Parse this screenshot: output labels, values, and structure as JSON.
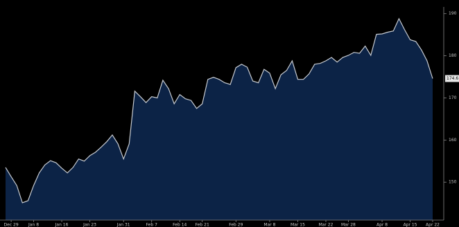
{
  "chart_data": {
    "type": "area",
    "categories": [
      null,
      "Dec 29",
      null,
      null,
      null,
      "Jan 8",
      null,
      null,
      null,
      null,
      "Jan 16",
      null,
      null,
      null,
      null,
      "Jan 23",
      null,
      null,
      null,
      null,
      null,
      "Jan 31",
      null,
      null,
      null,
      null,
      "Feb 7",
      null,
      null,
      null,
      null,
      "Feb 14",
      null,
      null,
      null,
      "Feb 21",
      null,
      null,
      null,
      null,
      null,
      "Feb 29",
      null,
      null,
      null,
      null,
      null,
      "Mar 8",
      null,
      null,
      null,
      null,
      "Mar 15",
      null,
      null,
      null,
      null,
      "Mar 22",
      null,
      null,
      null,
      "Mar 28",
      null,
      null,
      null,
      null,
      null,
      "Apr 8",
      null,
      null,
      null,
      null,
      "Apr 15",
      null,
      null,
      null,
      "Apr 22"
    ],
    "values": [
      153.5,
      151.3,
      149.2,
      145.1,
      145.6,
      149.2,
      152.2,
      154.1,
      155.1,
      154.6,
      153.3,
      152.2,
      153.5,
      155.5,
      155.0,
      156.3,
      157.1,
      158.3,
      159.6,
      161.2,
      159.1,
      155.5,
      159.1,
      171.6,
      170.3,
      168.9,
      170.3,
      170.0,
      174.2,
      172.2,
      168.6,
      170.8,
      169.8,
      169.4,
      167.5,
      168.6,
      174.4,
      174.9,
      174.4,
      173.6,
      173.2,
      177.2,
      178.0,
      177.3,
      174.0,
      173.6,
      176.8,
      175.9,
      172.2,
      175.5,
      176.5,
      178.8,
      174.4,
      174.4,
      175.7,
      178.0,
      178.2,
      178.8,
      179.6,
      178.5,
      179.6,
      180.1,
      180.8,
      180.6,
      182.3,
      180.1,
      185.1,
      185.2,
      185.6,
      185.9,
      188.8,
      186.2,
      183.8,
      183.4,
      181.4,
      178.8,
      174.6
    ],
    "color": "#0c2346",
    "line_color": "#c8ccd2",
    "ylim": [
      141,
      191.6
    ],
    "yticks": [
      150,
      160,
      170,
      180,
      190
    ],
    "y_axis_side": "right"
  }
}
